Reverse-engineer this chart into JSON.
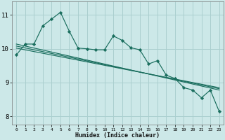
{
  "xlabel": "Humidex (Indice chaleur)",
  "bg_color": "#cce8e8",
  "grid_color": "#aacfcf",
  "line_color": "#1a6e5e",
  "x_ticks": [
    0,
    1,
    2,
    3,
    4,
    5,
    6,
    7,
    8,
    9,
    10,
    11,
    12,
    13,
    14,
    15,
    16,
    17,
    18,
    19,
    20,
    21,
    22,
    23
  ],
  "y_ticks": [
    8,
    9,
    10,
    11
  ],
  "ylim": [
    7.75,
    11.4
  ],
  "xlim": [
    -0.5,
    23.5
  ],
  "series1": [
    9.82,
    10.14,
    10.14,
    10.68,
    10.88,
    11.08,
    10.52,
    10.02,
    10.0,
    9.97,
    9.97,
    10.38,
    10.25,
    10.03,
    9.97,
    9.55,
    9.65,
    9.22,
    9.12,
    8.85,
    8.78,
    8.55,
    8.78,
    8.15
  ],
  "trend1_x": [
    0,
    23
  ],
  "trend1_y": [
    10.14,
    8.78
  ],
  "trend2_x": [
    0,
    23
  ],
  "trend2_y": [
    10.02,
    8.85
  ],
  "trend3_x": [
    0,
    23
  ],
  "trend3_y": [
    10.08,
    8.82
  ]
}
